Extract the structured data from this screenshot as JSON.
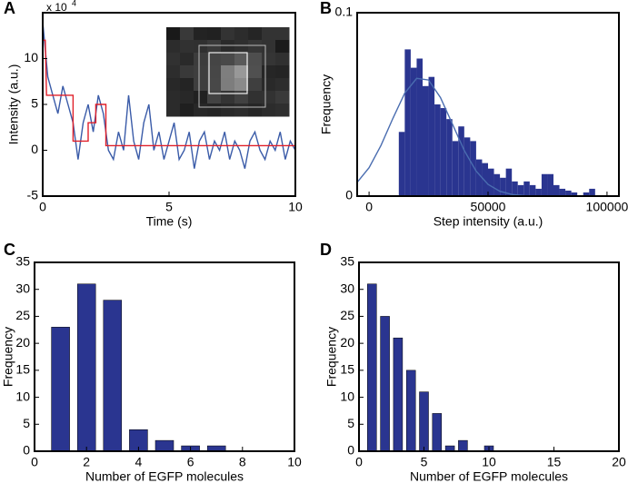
{
  "chart_data": [
    {
      "type": "line",
      "panel": "A",
      "xlabel": "Time (s)",
      "ylabel": "Intensity (a.u.)",
      "y_multiplier": "x 10",
      "y_multiplier_exponent": "4",
      "xlim": [
        0,
        10
      ],
      "xticks": [
        0,
        5,
        10
      ],
      "ylim": [
        -5,
        15
      ],
      "yticks": [
        -5,
        0,
        5,
        10
      ],
      "series": [
        {
          "color": "#3a5ba8",
          "x": [
            0,
            0.2,
            0.4,
            0.6,
            0.8,
            1.0,
            1.2,
            1.4,
            1.6,
            1.8,
            2.0,
            2.2,
            2.4,
            2.6,
            2.8,
            3.0,
            3.2,
            3.4,
            3.6,
            3.8,
            4.0,
            4.2,
            4.4,
            4.6,
            4.8,
            5.0,
            5.2,
            5.4,
            5.6,
            5.8,
            6.0,
            6.2,
            6.4,
            6.6,
            6.8,
            7.0,
            7.2,
            7.4,
            7.6,
            7.8,
            8.0,
            8.2,
            8.4,
            8.6,
            8.8,
            9.0,
            9.2,
            9.4,
            9.6,
            9.8,
            10.0
          ],
          "values": [
            14,
            8,
            6,
            4,
            7,
            5,
            3,
            -1,
            3,
            5,
            2,
            6,
            4,
            0,
            -1,
            2,
            0,
            6,
            1,
            -1,
            3,
            5,
            0,
            2,
            -1,
            1,
            3,
            -1,
            0,
            2,
            -2,
            1,
            2,
            -1,
            1,
            0,
            2,
            -1,
            1,
            0,
            -2,
            1,
            2,
            0,
            -1,
            1,
            0,
            2,
            -1,
            1,
            0
          ]
        },
        {
          "color": "#e0202a",
          "x": [
            0,
            0.1,
            0.15,
            1.2,
            1.2,
            1.8,
            1.8,
            2.1,
            2.1,
            2.5,
            2.5,
            10
          ],
          "values": [
            12,
            12,
            6,
            6,
            1,
            1,
            3,
            3,
            5,
            5,
            0.5,
            0.5
          ]
        }
      ]
    },
    {
      "type": "histogram",
      "panel": "B",
      "xlabel": "Step intensity (a.u.)",
      "ylabel": "Frequency",
      "xlim": [
        -5000,
        105000
      ],
      "xticks": [
        0,
        50000,
        100000
      ],
      "ylim": [
        0,
        0.1
      ],
      "yticks": [
        0,
        0.1
      ],
      "color": "#2a3590",
      "bins": [
        12500,
        15000,
        17500,
        20000,
        22500,
        25000,
        27500,
        30000,
        32500,
        35000,
        37500,
        40000,
        42500,
        45000,
        47500,
        50000,
        52500,
        55000,
        57500,
        60000,
        62500,
        65000,
        67500,
        70000,
        72500,
        75000,
        77500,
        80000,
        82500,
        85000,
        87500,
        90000,
        92500,
        95000
      ],
      "values": [
        0.035,
        0.08,
        0.07,
        0.075,
        0.06,
        0.065,
        0.05,
        0.048,
        0.042,
        0.03,
        0.038,
        0.032,
        0.03,
        0.02,
        0.018,
        0.015,
        0.012,
        0.01,
        0.015,
        0.008,
        0.006,
        0.008,
        0.006,
        0.004,
        0.012,
        0.012,
        0.006,
        0.004,
        0.003,
        0.002,
        0,
        0.002,
        0.004
      ],
      "fit": {
        "color": "#4a6db0",
        "x": [
          -5000,
          0,
          5000,
          10000,
          15000,
          20000,
          25000,
          30000,
          35000,
          40000,
          45000,
          50000,
          55000,
          60000,
          65000,
          70000,
          75000,
          80000,
          85000,
          90000,
          95000,
          100000
        ],
        "values": [
          0.0075,
          0.0155,
          0.0276,
          0.0424,
          0.0562,
          0.0642,
          0.0633,
          0.0538,
          0.0394,
          0.0249,
          0.0136,
          0.0064,
          0.0026,
          0.0009,
          0.0003,
          0.0001,
          0,
          0,
          0,
          0,
          0,
          0
        ]
      }
    },
    {
      "type": "bar",
      "panel": "C",
      "xlabel": "Number of EGFP molecules",
      "ylabel": "Frequency",
      "xlim": [
        0,
        10
      ],
      "xticks": [
        0,
        2,
        4,
        6,
        8,
        10
      ],
      "ylim": [
        0,
        35
      ],
      "yticks": [
        0,
        5,
        10,
        15,
        20,
        25,
        30,
        35
      ],
      "color": "#2a3590",
      "x": [
        1,
        2,
        3,
        4,
        5,
        6,
        7
      ],
      "values": [
        23,
        31,
        28,
        4,
        2,
        1,
        1
      ]
    },
    {
      "type": "bar",
      "panel": "D",
      "xlabel": "Number of EGFP molecules",
      "ylabel": "Frequency",
      "xlim": [
        0,
        20
      ],
      "xticks": [
        0,
        5,
        10,
        15,
        20
      ],
      "ylim": [
        0,
        35
      ],
      "yticks": [
        0,
        5,
        10,
        15,
        20,
        25,
        30,
        35
      ],
      "color": "#2a3590",
      "x": [
        1,
        2,
        3,
        4,
        5,
        6,
        7,
        8,
        9,
        10
      ],
      "values": [
        31,
        25,
        21,
        15,
        11,
        7,
        1,
        2,
        0,
        1
      ]
    }
  ]
}
